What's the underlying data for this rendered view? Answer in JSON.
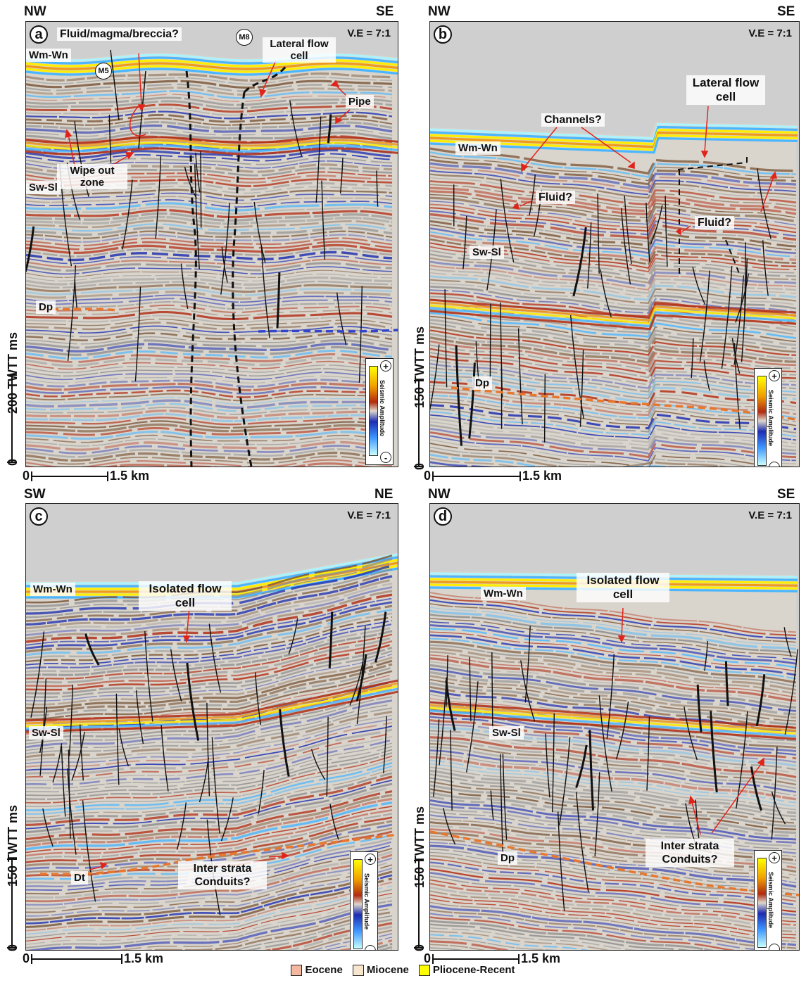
{
  "panels": {
    "a": {
      "letter": "a",
      "left_dir": "NW",
      "right_dir": "SE",
      "ve": "V.E = 7:1",
      "labels": {
        "fluid": "Fluid/magma/breccia?",
        "lateral": "Lateral flow cell",
        "pipe": "Pipe",
        "wipe": "Wipe out zone",
        "wmwn": "Wm-Wn",
        "swsl": "Sw-Sl",
        "dp": "Dp",
        "m5": "M5",
        "m8": "M8"
      },
      "vscale": {
        "zero": "0",
        "label": "200 TWTT ms"
      },
      "hscale": {
        "zero": "0",
        "label": "1.5 km"
      }
    },
    "b": {
      "letter": "b",
      "left_dir": "NW",
      "right_dir": "SE",
      "ve": "V.E = 7:1",
      "labels": {
        "lateral": "Lateral flow cell",
        "channels": "Channels?",
        "fluid1": "Fluid?",
        "fluid2": "Fluid?",
        "wmwn": "Wm-Wn",
        "swsl": "Sw-Sl",
        "dp": "Dp"
      },
      "vscale": {
        "zero": "0",
        "label": "150 TWTT ms"
      },
      "hscale": {
        "zero": "0",
        "label": "1.5 km"
      }
    },
    "c": {
      "letter": "c",
      "left_dir": "SW",
      "right_dir": "NE",
      "ve": "V.E = 7:1",
      "labels": {
        "isolated": "Isolated flow cell",
        "inter": "Inter strata Conduits?",
        "wmwn": "Wm-Wn",
        "swsl": "Sw-Sl",
        "dt": "Dt"
      },
      "vscale": {
        "zero": "0",
        "label": "150 TWTT ms"
      },
      "hscale": {
        "zero": "0",
        "label": "1.5 km"
      }
    },
    "d": {
      "letter": "d",
      "left_dir": "NW",
      "right_dir": "SE",
      "ve": "V.E = 7:1",
      "labels": {
        "isolated": "Isolated flow cell",
        "inter": "Inter strata Conduits?",
        "wmwn": "Wm-Wn",
        "swsl": "Sw-Sl",
        "dp": "Dp"
      },
      "vscale": {
        "zero": "0",
        "label": "150 TWTT ms"
      },
      "hscale": {
        "zero": "0",
        "label": "1.5 km"
      }
    }
  },
  "amplitude_legend": {
    "title": "Seismic Amplitude",
    "plus": "+",
    "minus": "-"
  },
  "age_legend": [
    {
      "label": "Eocene",
      "color": "#f4b8a0"
    },
    {
      "label": "Miocene",
      "color": "#f7e6cc"
    },
    {
      "label": "Pliocene-Recent",
      "color": "#ffff00"
    }
  ],
  "colors": {
    "yellow": "#ffee00",
    "orange": "#f09a1a",
    "red": "#b12b12",
    "brown": "#7a5638",
    "blue": "#1e2fb0",
    "lightblue": "#49b6ff",
    "cyan": "#aaf3ff",
    "grey": "#8d8d8d",
    "horizon_orange": "#e8772e",
    "fault": "#111111",
    "arrow": "#e0241b"
  }
}
